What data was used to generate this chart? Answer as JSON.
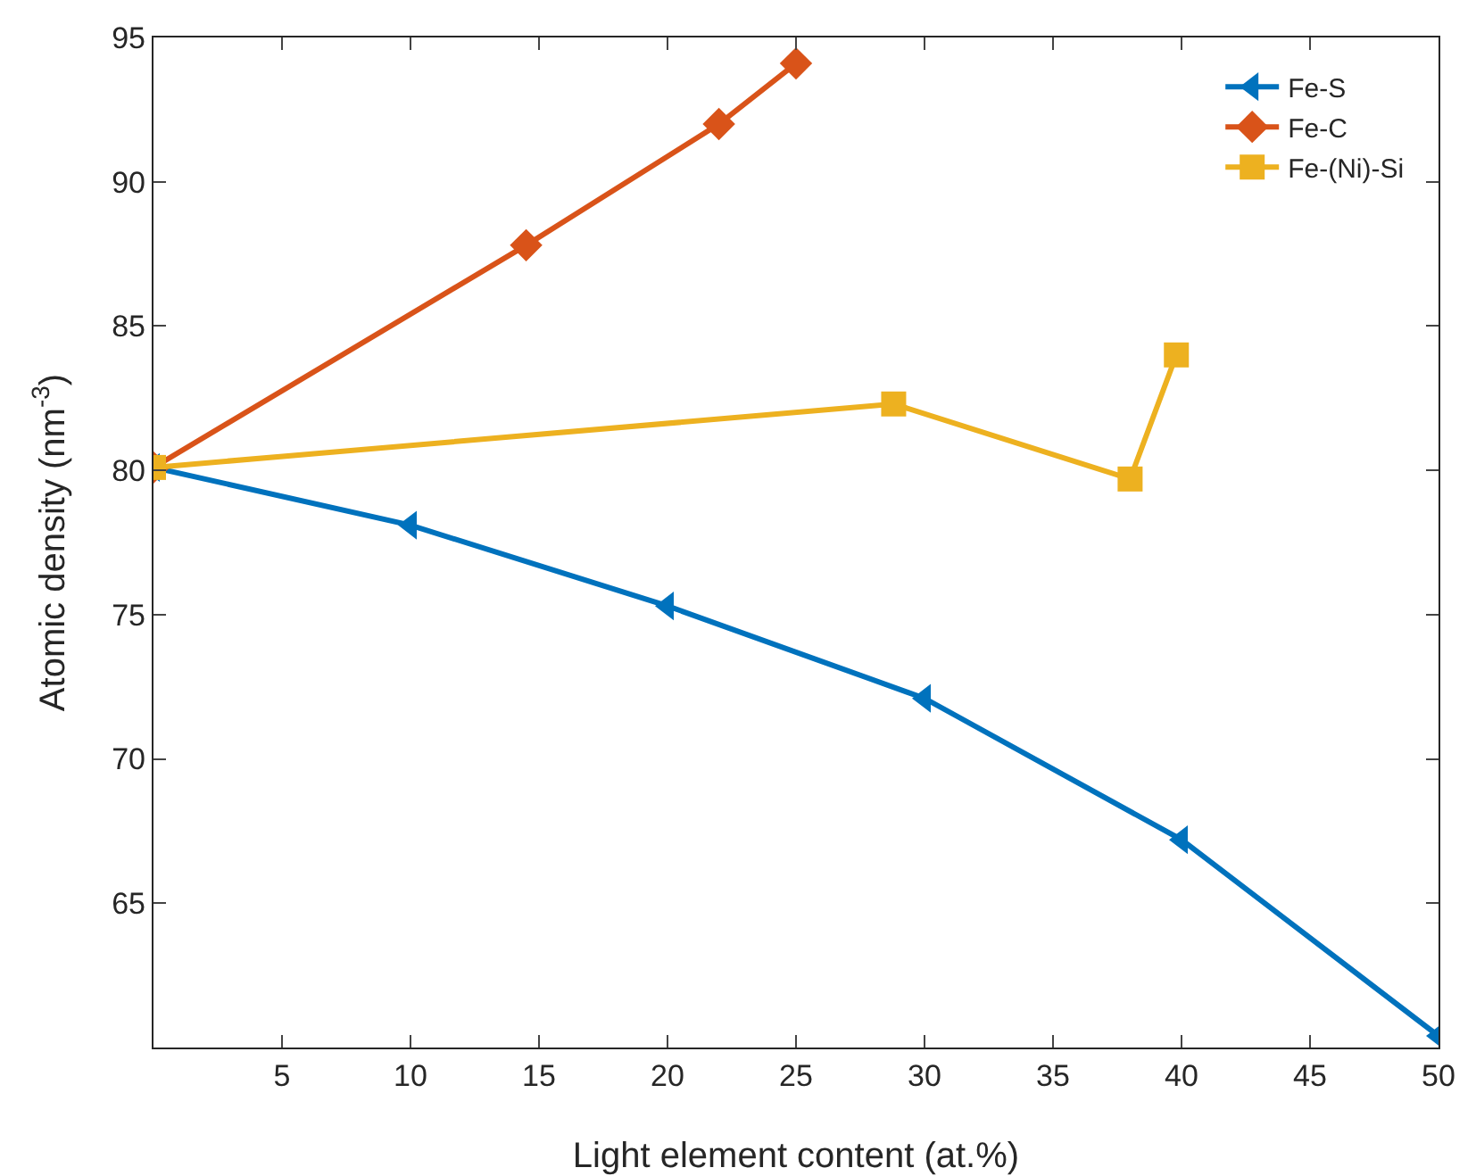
{
  "chart_data": {
    "type": "line",
    "xlabel": "Light element content (at.%)",
    "ylabel": "Atomic density (nm$^{-3}$)",
    "xlim": [
      0,
      50
    ],
    "xticks": [
      5,
      10,
      15,
      20,
      25,
      30,
      35,
      40,
      45,
      50
    ],
    "ylim": [
      60,
      95
    ],
    "yticks": [
      65,
      70,
      75,
      80,
      85,
      90,
      95
    ],
    "grid": false,
    "legend": "top right",
    "series": [
      {
        "name": "Fe-S",
        "color": "#0072bd",
        "marker": "triangle",
        "x": [
          0,
          10,
          20,
          30,
          40,
          50
        ],
        "values": [
          80.1,
          78.1,
          75.3,
          72.1,
          67.2,
          60.4
        ]
      },
      {
        "name": "Fe-C",
        "color": "#d95319",
        "marker": "diamond",
        "x": [
          0,
          14.5,
          22,
          25
        ],
        "values": [
          80.1,
          87.8,
          92,
          94.1
        ]
      },
      {
        "name": "Fe-(Ni)-Si",
        "color": "#edb120",
        "marker": "square",
        "x": [
          0,
          28.8,
          38,
          39.8
        ],
        "values": [
          80.1,
          82.3,
          79.7,
          84
        ]
      }
    ]
  }
}
